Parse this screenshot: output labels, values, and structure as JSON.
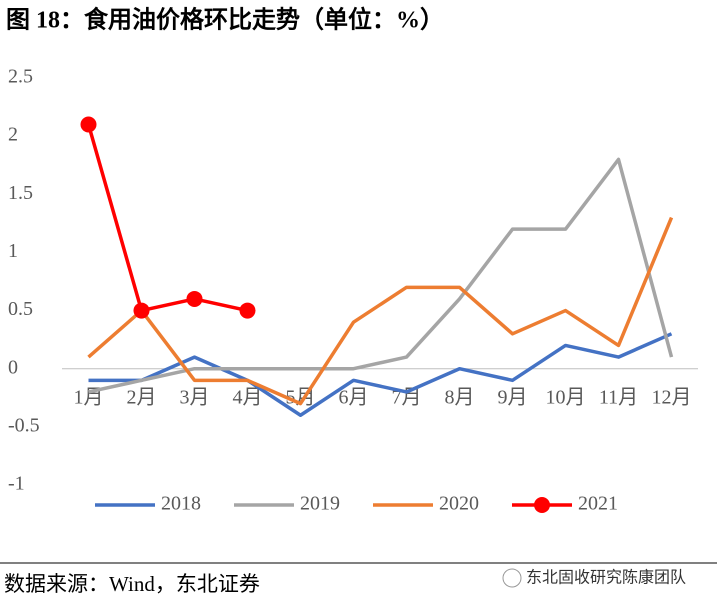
{
  "chart_data": {
    "type": "line",
    "title": "图 18：食用油价格环比走势（单位：%）",
    "source": "数据来源：Wind，东北证券",
    "watermark": "东北固收研究陈康团队",
    "categories": [
      "1月",
      "2月",
      "3月",
      "4月",
      "5月",
      "6月",
      "7月",
      "8月",
      "9月",
      "10月",
      "11月",
      "12月"
    ],
    "series": [
      {
        "name": "2018",
        "color": "#4472c4",
        "marker": false,
        "values": [
          -0.1,
          -0.1,
          0.1,
          -0.1,
          -0.4,
          -0.1,
          -0.2,
          0,
          -0.1,
          0.2,
          0.1,
          0.3
        ]
      },
      {
        "name": "2019",
        "color": "#a5a5a5",
        "marker": false,
        "values": [
          -0.2,
          -0.1,
          0,
          0,
          0,
          0,
          0.1,
          0.6,
          1.2,
          1.2,
          1.8,
          0.1
        ]
      },
      {
        "name": "2020",
        "color": "#ed7d31",
        "marker": false,
        "values": [
          0.1,
          0.5,
          -0.1,
          -0.1,
          -0.3,
          0.4,
          0.7,
          0.7,
          0.3,
          0.5,
          0.2,
          1.3
        ]
      },
      {
        "name": "2021",
        "color": "#ff0000",
        "marker": true,
        "values": [
          2.1,
          0.5,
          0.6,
          0.5,
          null,
          null,
          null,
          null,
          null,
          null,
          null,
          null
        ]
      }
    ],
    "ylim": [
      -1,
      2.5
    ],
    "yticks": [
      -1,
      -0.5,
      0,
      0.5,
      1,
      1.5,
      2,
      2.5
    ],
    "grid": false,
    "legend": "bottom"
  }
}
